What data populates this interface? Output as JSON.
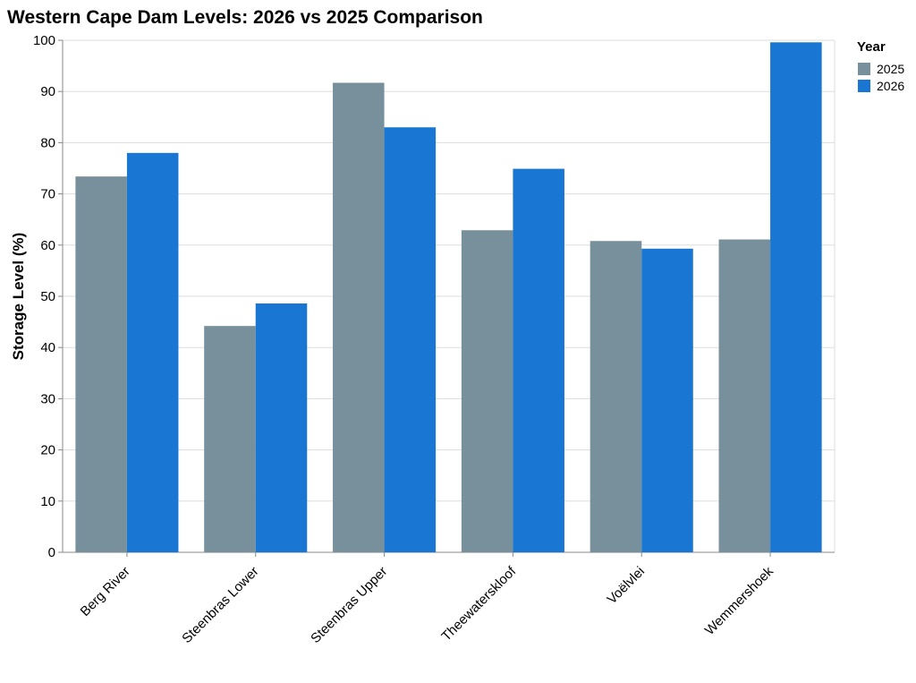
{
  "chart_data": {
    "type": "bar",
    "title": "Western Cape Dam Levels: 2026 vs 2025 Comparison",
    "xlabel": "",
    "ylabel": "Storage Level (%)",
    "ylim": [
      0,
      100
    ],
    "yticks": [
      0,
      10,
      20,
      30,
      40,
      50,
      60,
      70,
      80,
      90,
      100
    ],
    "grid": true,
    "legend": {
      "title": "Year",
      "placement": "top-right"
    },
    "categories": [
      "Berg River",
      "Steenbras Lower",
      "Steenbras Upper",
      "Theewaterskloof",
      "Voëlvlei",
      "Wemmershoek"
    ],
    "series": [
      {
        "name": "2025",
        "color": "#78909c",
        "values": [
          73.4,
          44.2,
          91.7,
          62.9,
          60.8,
          61.1
        ]
      },
      {
        "name": "2026",
        "color": "#1976d2",
        "values": [
          78.0,
          48.6,
          83.0,
          74.9,
          59.3,
          99.6
        ]
      }
    ]
  }
}
